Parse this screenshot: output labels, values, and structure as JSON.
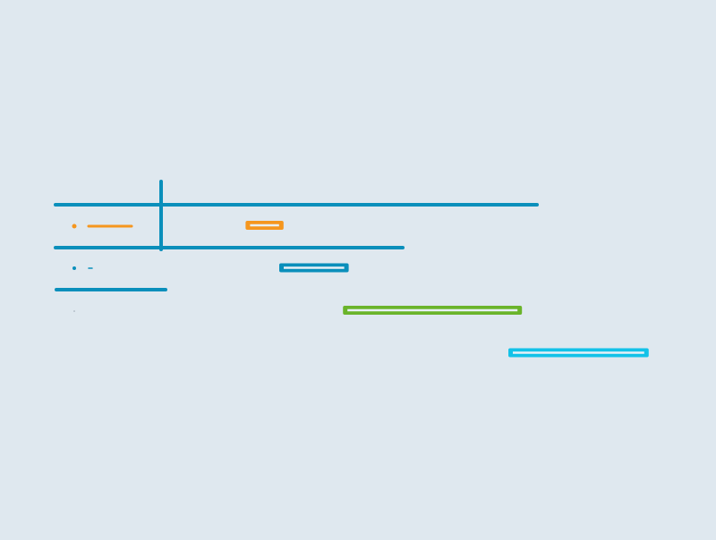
{
  "colors": {
    "background": "#dfe8ef",
    "grid_line": "#0a8fbb",
    "orange": "#f5961e",
    "blue": "#0a8fbb",
    "green": "#6ab42a",
    "cyan": "#13c2e8",
    "inner_fill": "#e8f0f6",
    "muted": "#9aa7b3"
  },
  "chart_data": {
    "type": "gantt",
    "timeline_start": 0,
    "timeline_end": 100,
    "tasks": [
      {
        "start": 34.3,
        "end": 39.6,
        "color": "orange",
        "row_marker": "bullet-with-bar"
      },
      {
        "start": 39.0,
        "end": 48.7,
        "color": "blue",
        "row_marker": "bullet-with-dash"
      },
      {
        "start": 47.9,
        "end": 72.9,
        "color": "green",
        "row_marker": "dot"
      },
      {
        "start": 71.0,
        "end": 90.6,
        "color": "cyan",
        "row_marker": "none"
      }
    ]
  }
}
